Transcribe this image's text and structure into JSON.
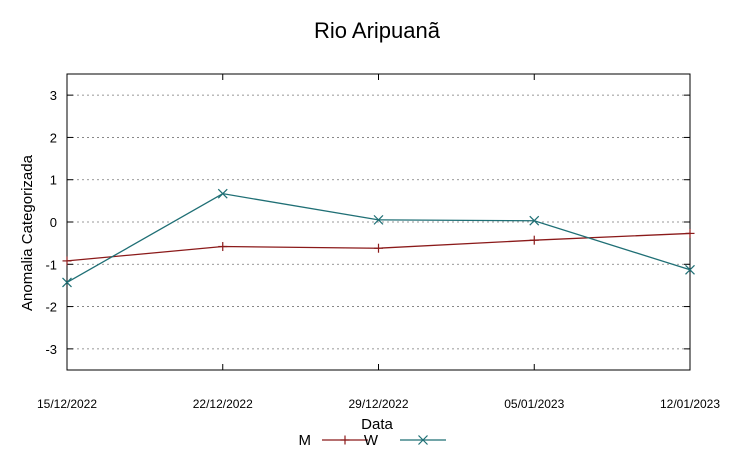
{
  "chart_data": {
    "type": "line",
    "title": "Rio Aripuanã",
    "xlabel": "Data",
    "ylabel": "Anomalia Categorizada",
    "categories": [
      "15/12/2022",
      "22/12/2022",
      "29/12/2022",
      "05/01/2023",
      "12/01/2023"
    ],
    "yticks": [
      "3",
      "2",
      "1",
      "0",
      "-1",
      "-2",
      "-3"
    ],
    "ytick_values": [
      3,
      2,
      1,
      0,
      -1,
      -2,
      -3
    ],
    "ylim": [
      -3.5,
      3.5
    ],
    "grid": true,
    "legend_position": "bottom",
    "series": [
      {
        "name": "M",
        "color": "#8b1a1a",
        "marker": "plus",
        "values": [
          -0.92,
          -0.58,
          -0.62,
          -0.43,
          -0.27
        ]
      },
      {
        "name": "W",
        "color": "#1f6f75",
        "marker": "x",
        "values": [
          -1.43,
          0.67,
          0.05,
          0.03,
          -1.13
        ]
      }
    ]
  }
}
